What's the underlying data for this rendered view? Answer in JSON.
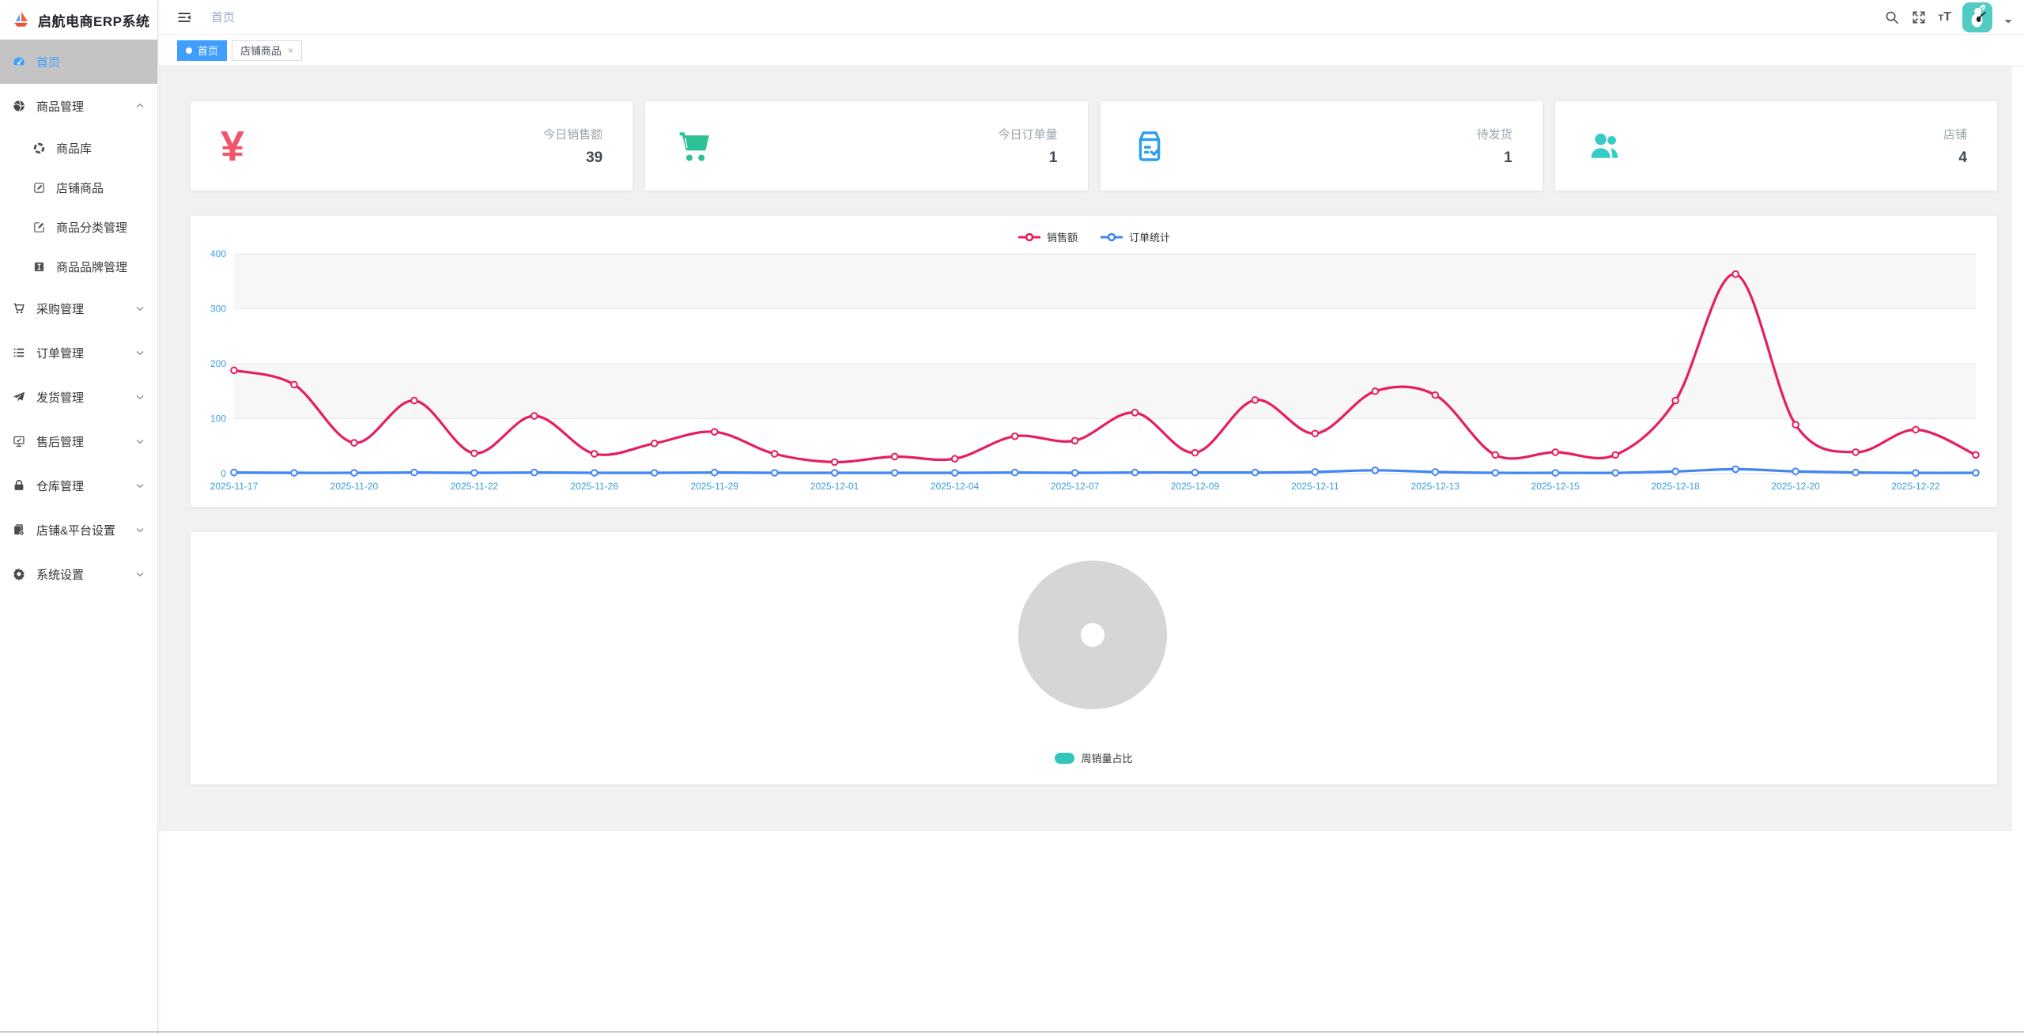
{
  "app": {
    "title": "启航电商ERP系统",
    "logo_icon": "sailboat-logo"
  },
  "topbar": {
    "breadcrumb": "首页",
    "collapse_icon": "menu-fold-icon",
    "actions": [
      {
        "name": "search-icon"
      },
      {
        "name": "fullscreen-icon"
      },
      {
        "name": "font-size-icon",
        "text_small": "T",
        "text_big": "T"
      },
      {
        "name": "avatar"
      },
      {
        "name": "caret-down-icon"
      }
    ]
  },
  "tabs": [
    {
      "label": "首页",
      "active": true,
      "closable": false
    },
    {
      "label": "店铺商品",
      "active": false,
      "closable": true,
      "close_glyph": "×"
    }
  ],
  "sidebar": {
    "items": [
      {
        "label": "首页",
        "icon": "dashboard-icon",
        "active": true,
        "chevron": null
      },
      {
        "label": "商品管理",
        "icon": "globe-icon",
        "active": false,
        "chevron": "up",
        "children": [
          {
            "label": "商品库",
            "icon": "target-icon"
          },
          {
            "label": "店铺商品",
            "icon": "pen-square-icon"
          },
          {
            "label": "商品分类管理",
            "icon": "edit-square-icon"
          },
          {
            "label": "商品品牌管理",
            "icon": "brand-icon"
          }
        ]
      },
      {
        "label": "采购管理",
        "icon": "cart-icon",
        "active": false,
        "chevron": "down"
      },
      {
        "label": "订单管理",
        "icon": "list-icon",
        "active": false,
        "chevron": "down"
      },
      {
        "label": "发货管理",
        "icon": "send-icon",
        "active": false,
        "chevron": "down"
      },
      {
        "label": "售后管理",
        "icon": "aftersale-icon",
        "active": false,
        "chevron": "down"
      },
      {
        "label": "仓库管理",
        "icon": "lock-icon",
        "active": false,
        "chevron": "down"
      },
      {
        "label": "店铺&平台设置",
        "icon": "shop-settings-icon",
        "active": false,
        "chevron": "down"
      },
      {
        "label": "系统设置",
        "icon": "gear-icon",
        "active": false,
        "chevron": "down"
      }
    ]
  },
  "stat_cards": [
    {
      "label": "今日销售额",
      "value": "39",
      "icon": "yuan-icon",
      "color": "#f1556c"
    },
    {
      "label": "今日订单量",
      "value": "1",
      "icon": "cart-big-icon",
      "color": "#2bc194"
    },
    {
      "label": "待发货",
      "value": "1",
      "icon": "package-check-icon",
      "color": "#2b9ff0"
    },
    {
      "label": "店铺",
      "value": "4",
      "icon": "users-icon",
      "color": "#35ccc4"
    }
  ],
  "chart_data": [
    {
      "type": "line",
      "title": "",
      "legend_position": "top-center",
      "axis_label_color": "#3aa1db",
      "grid": "split-area-bands",
      "ylim": [
        0,
        400
      ],
      "yticks": [
        0,
        100,
        200,
        300,
        400
      ],
      "x_labels": [
        "2025-11-17",
        "2025-11-20",
        "2025-11-22",
        "2025-11-26",
        "2025-11-29",
        "2025-12-01",
        "2025-12-04",
        "2025-12-07",
        "2025-12-09",
        "2025-12-11",
        "2025-12-13",
        "2025-12-15",
        "2025-12-18",
        "2025-12-20",
        "2025-12-22"
      ],
      "points_per_label": 2,
      "series": [
        {
          "name": "销售额",
          "color": "#e61e5c",
          "values": [
            188,
            162,
            56,
            133,
            37,
            105,
            36,
            55,
            76,
            36,
            21,
            31,
            27,
            68,
            60,
            111,
            38,
            134,
            73,
            150,
            143,
            34,
            39,
            34,
            133,
            363,
            89,
            39,
            80,
            34
          ]
        },
        {
          "name": "订单统计",
          "color": "#4285f4",
          "values": [
            2,
            1,
            1,
            2,
            1,
            2,
            1,
            1,
            2,
            1,
            1,
            1,
            1,
            2,
            1,
            2,
            2,
            2,
            3,
            6,
            3,
            1,
            1,
            1,
            4,
            8,
            4,
            2,
            1,
            1
          ]
        }
      ]
    },
    {
      "type": "pie",
      "title": "",
      "no_data": true,
      "placeholder_color": "#d4d6d8",
      "inner_hole_color": "#ffffff",
      "legend": [
        {
          "label": "周销量占比",
          "color": "#33c5bc"
        }
      ],
      "legend_position": "bottom-center"
    }
  ],
  "colors": {
    "accent_blue": "#409eff",
    "sidebar_active_bg": "#c4c4c4",
    "content_bg": "#f0f1f3",
    "breadcrumb": "#97a8be"
  }
}
